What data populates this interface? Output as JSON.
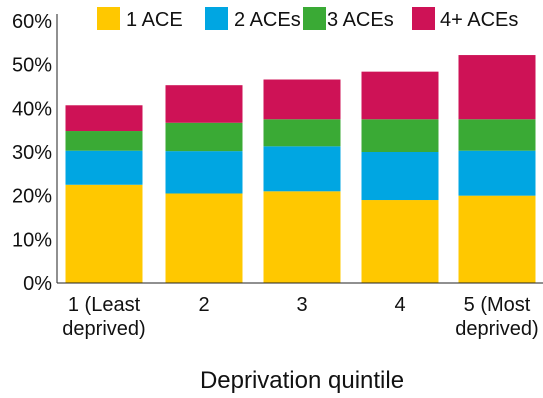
{
  "chart_data": {
    "type": "bar",
    "stacked": true,
    "title": "",
    "xlabel": "Deprivation quintile",
    "ylabel": "",
    "ylim": [
      0,
      60
    ],
    "y_ticks": [
      "0%",
      "10%",
      "20%",
      "30%",
      "40%",
      "50%",
      "60%"
    ],
    "y_tick_values": [
      0,
      10,
      20,
      30,
      40,
      50,
      60
    ],
    "categories": [
      [
        "1 (Least",
        "deprived)"
      ],
      [
        "2"
      ],
      [
        "3"
      ],
      [
        "4"
      ],
      [
        "5 (Most",
        "deprived)"
      ]
    ],
    "series": [
      {
        "name": "1 ACE",
        "color": "#FFC800",
        "values": [
          22.5,
          20.5,
          21.0,
          19.0,
          20.0
        ]
      },
      {
        "name": "2 ACEs",
        "color": "#00A6E2",
        "values": [
          7.8,
          9.7,
          10.3,
          11.0,
          10.3
        ]
      },
      {
        "name": "3 ACEs",
        "color": "#3AAA35",
        "values": [
          4.5,
          6.5,
          6.2,
          7.5,
          7.2
        ]
      },
      {
        "name": "4+ ACEs",
        "color": "#CE1256",
        "values": [
          5.9,
          8.6,
          9.1,
          10.9,
          14.7
        ]
      }
    ],
    "legend_position": "top",
    "grid": false
  }
}
